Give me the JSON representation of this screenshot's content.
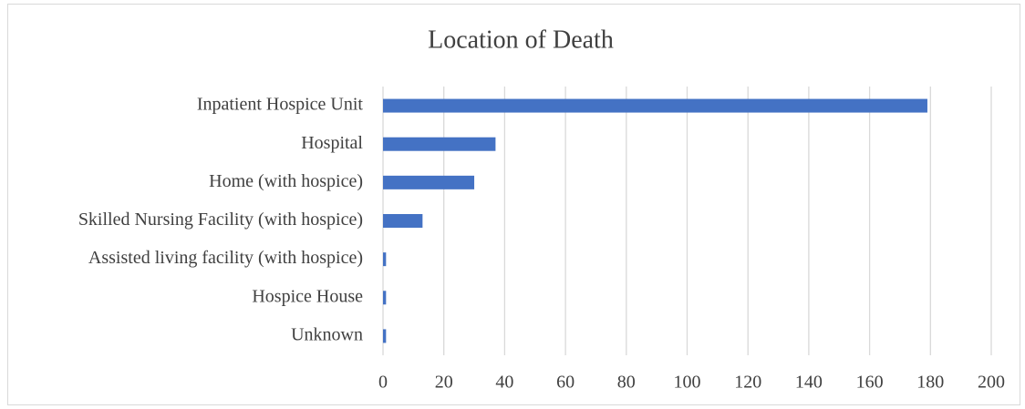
{
  "chart_data": {
    "type": "bar",
    "orientation": "horizontal",
    "title": "Location of Death",
    "categories": [
      "Inpatient Hospice Unit",
      "Hospital",
      "Home (with hospice)",
      "Skilled Nursing Facility (with hospice)",
      "Assisted living facility (with hospice)",
      "Hospice House",
      "Unknown"
    ],
    "values": [
      179,
      37,
      30,
      13,
      1,
      1,
      1
    ],
    "color": "#4472c4",
    "xlim": [
      0,
      200
    ],
    "xticks": [
      0,
      20,
      40,
      60,
      80,
      100,
      120,
      140,
      160,
      180,
      200
    ],
    "grid": true
  }
}
